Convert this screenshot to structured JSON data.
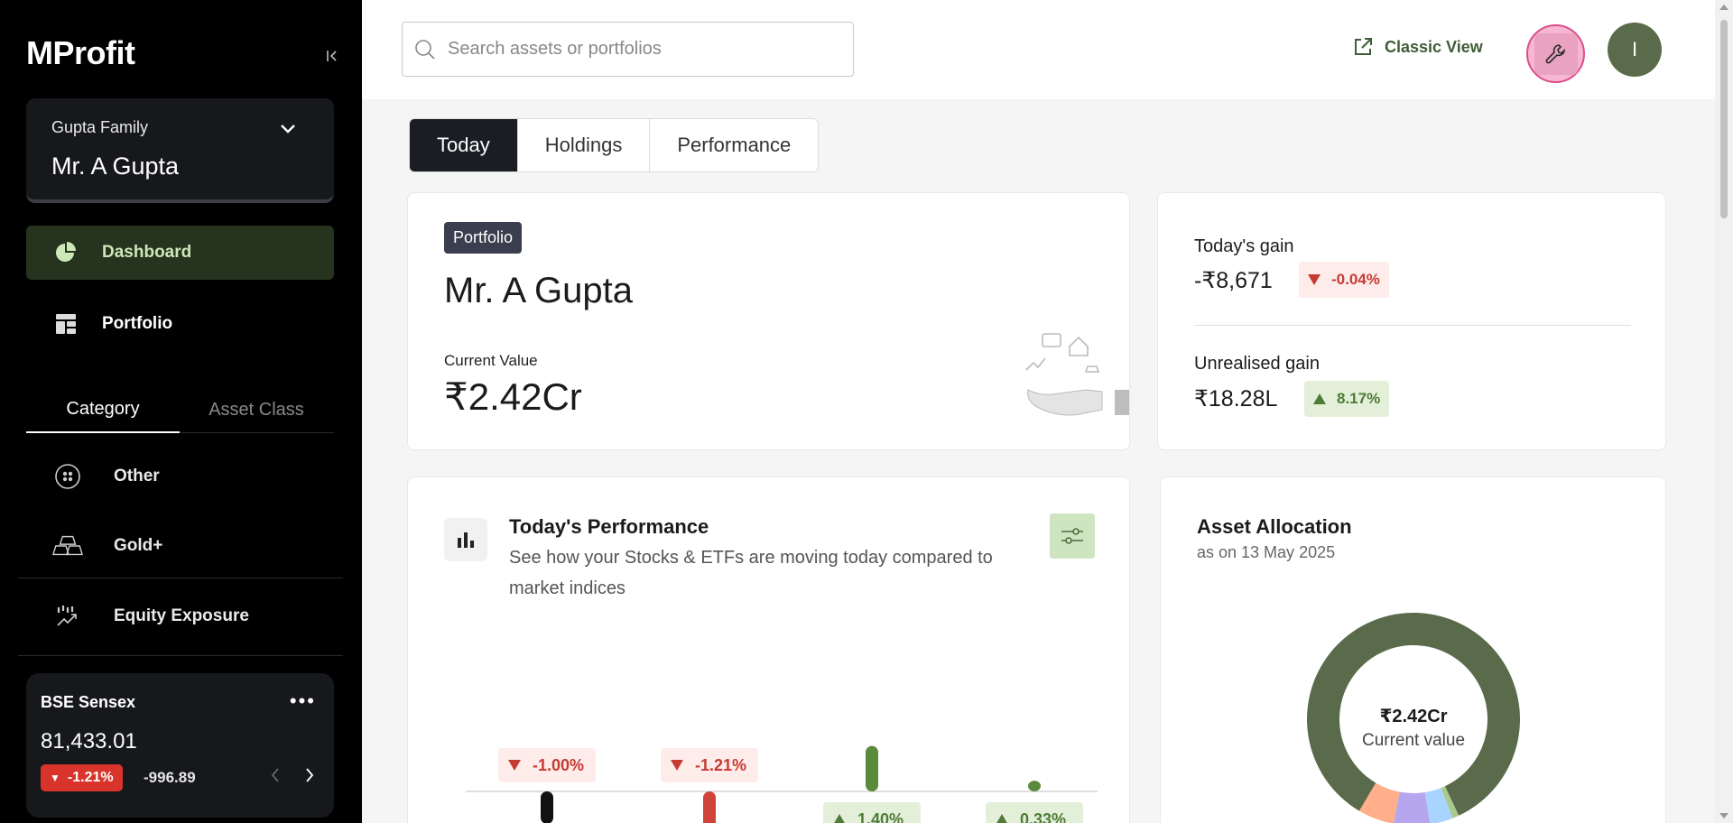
{
  "app": {
    "logo_m": "M",
    "logo_rest": "Profit"
  },
  "sidebar": {
    "family": "Gupta Family",
    "member": "Mr. A Gupta",
    "nav": [
      {
        "label": "Dashboard",
        "icon": "pie-chart-icon",
        "active": true
      },
      {
        "label": "Portfolio",
        "icon": "grid-icon",
        "active": false
      }
    ],
    "tabs": [
      {
        "label": "Category",
        "active": true
      },
      {
        "label": "Asset Class",
        "active": false
      }
    ],
    "categories": [
      {
        "label": "Other",
        "icon": "other-icon"
      },
      {
        "label": "Gold+",
        "icon": "gold-bars-icon"
      },
      {
        "label": "Equity Exposure",
        "icon": "equity-icon"
      }
    ],
    "index": {
      "name": "BSE Sensex",
      "value": "81,433.01",
      "change_pct": "-1.21%",
      "change_abs": "-996.89",
      "dots": "•••"
    }
  },
  "topbar": {
    "search_placeholder": "Search assets or portfolios",
    "classic_view": "Classic View",
    "avatar_initial": "I"
  },
  "main_tabs": [
    {
      "label": "Today",
      "active": true
    },
    {
      "label": "Holdings",
      "active": false
    },
    {
      "label": "Performance",
      "active": false
    }
  ],
  "portfolio_card": {
    "badge": "Portfolio",
    "name": "Mr. A Gupta",
    "current_value_label": "Current Value",
    "current_value": "₹2.42Cr"
  },
  "gain_card": {
    "today_label": "Today's gain",
    "today_value": "-₹8,671",
    "today_pct": "-0.04%",
    "unrealised_label": "Unrealised gain",
    "unrealised_value": "₹18.28L",
    "unrealised_pct": "8.17%"
  },
  "performance_card": {
    "title": "Today's Performance",
    "subtitle": "See how your Stocks & ETFs are moving today compared to market indices",
    "chart_data": {
      "type": "bar",
      "categories": [
        "",
        "",
        "",
        ""
      ],
      "values": [
        -1.0,
        -1.21,
        1.4,
        0.33
      ],
      "labels": [
        "-1.00%",
        "-1.21%",
        "1.40%",
        "0.33%"
      ],
      "colors": [
        "#111111",
        "#d0433a",
        "#5c8a3c",
        "#5c8a3c"
      ]
    }
  },
  "allocation_card": {
    "title": "Asset Allocation",
    "subtitle": "as on 13 May 2025",
    "center_value": "₹2.42Cr",
    "center_label": "Current value",
    "chart_data": {
      "type": "pie",
      "values": [
        84.5,
        1.0,
        3.5,
        5.5,
        5.5
      ],
      "colors": [
        "#5a6b4b",
        "#a9c98f",
        "#a9d4ff",
        "#b6a6f0",
        "#ffb08a"
      ]
    }
  }
}
